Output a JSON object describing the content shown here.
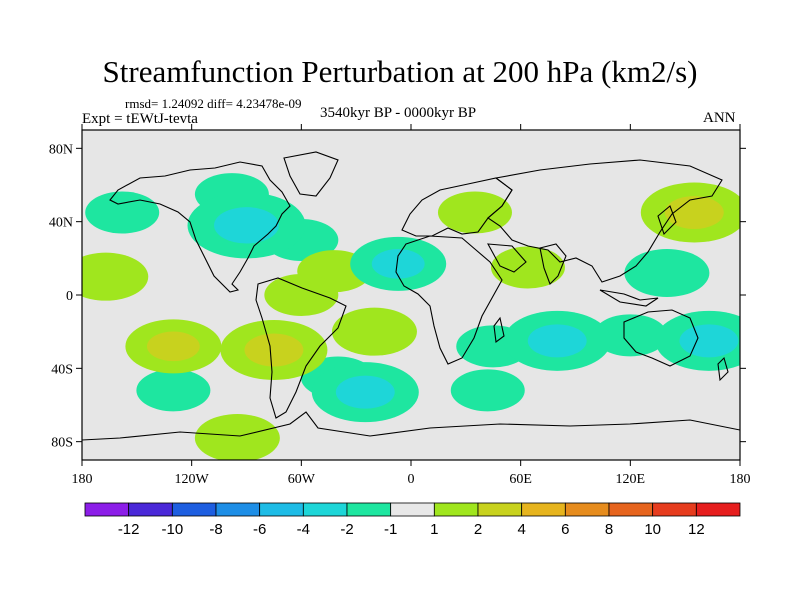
{
  "title": "Streamfunction Perturbation at 200 hPa (km2/s)",
  "stats": "rmsd= 1.24092 diff= 4.23478e-09",
  "experiment": "Expt = tEWtJ-tevta",
  "period": "3540kyr BP - 0000kyr BP",
  "season": "ANN",
  "chart_data": {
    "type": "heatmap",
    "title": "Streamfunction Perturbation at 200 hPa (km2/s)",
    "x_ticks": [
      {
        "value": -180,
        "label": "180"
      },
      {
        "value": -120,
        "label": "120W"
      },
      {
        "value": -60,
        "label": "60W"
      },
      {
        "value": 0,
        "label": "0"
      },
      {
        "value": 60,
        "label": "60E"
      },
      {
        "value": 120,
        "label": "120E"
      },
      {
        "value": 180,
        "label": "180"
      }
    ],
    "y_ticks": [
      {
        "value": 80,
        "label": "80N"
      },
      {
        "value": 40,
        "label": "40N"
      },
      {
        "value": 0,
        "label": "0"
      },
      {
        "value": -40,
        "label": "40S"
      },
      {
        "value": -80,
        "label": "80S"
      }
    ],
    "xlim": [
      -180,
      180
    ],
    "ylim": [
      -90,
      90
    ],
    "colorbar": {
      "levels": [
        "-12",
        "-10",
        "-8",
        "-6",
        "-4",
        "-2",
        "-1",
        "1",
        "2",
        "4",
        "6",
        "8",
        "10",
        "12"
      ],
      "colors": [
        "#8c1ee8",
        "#4a28d8",
        "#1e5ee0",
        "#1e8ee6",
        "#1ebce6",
        "#1ed6d8",
        "#1ee6a0",
        "#e8e8e8",
        "#a0e61e",
        "#c8d21e",
        "#e6b41e",
        "#e68c1e",
        "#e6641e",
        "#e63c1e",
        "#e61e1e"
      ]
    },
    "anomalies": [
      {
        "lon": -158,
        "lat": 45,
        "value": -1
      },
      {
        "lon": -90,
        "lat": 38,
        "value": -3
      },
      {
        "lon": -98,
        "lat": 55,
        "value": -1
      },
      {
        "lon": -60,
        "lat": 30,
        "value": -1
      },
      {
        "lon": -167,
        "lat": 10,
        "value": 1.5
      },
      {
        "lon": -42,
        "lat": 13,
        "value": 1
      },
      {
        "lon": -60,
        "lat": 0,
        "value": 1
      },
      {
        "lon": -75,
        "lat": -30,
        "value": 2.5
      },
      {
        "lon": -130,
        "lat": -28,
        "value": 2
      },
      {
        "lon": -20,
        "lat": -20,
        "value": 1.5
      },
      {
        "lon": -130,
        "lat": -52,
        "value": -1
      },
      {
        "lon": -95,
        "lat": -78,
        "value": 1.5
      },
      {
        "lon": -40,
        "lat": -45,
        "value": -1
      },
      {
        "lon": -25,
        "lat": -53,
        "value": -2.5
      },
      {
        "lon": 42,
        "lat": -52,
        "value": -1
      },
      {
        "lon": -7,
        "lat": 17,
        "value": -2
      },
      {
        "lon": 35,
        "lat": 45,
        "value": 1
      },
      {
        "lon": 64,
        "lat": 15,
        "value": 1
      },
      {
        "lon": 80,
        "lat": -25,
        "value": -2.5
      },
      {
        "lon": 120,
        "lat": -22,
        "value": -1
      },
      {
        "lon": 155,
        "lat": 45,
        "value": 2.5
      },
      {
        "lon": 140,
        "lat": 12,
        "value": -1.5
      },
      {
        "lon": 163,
        "lat": -25,
        "value": -2.5
      },
      {
        "lon": 45,
        "lat": -28,
        "value": -1
      }
    ]
  }
}
